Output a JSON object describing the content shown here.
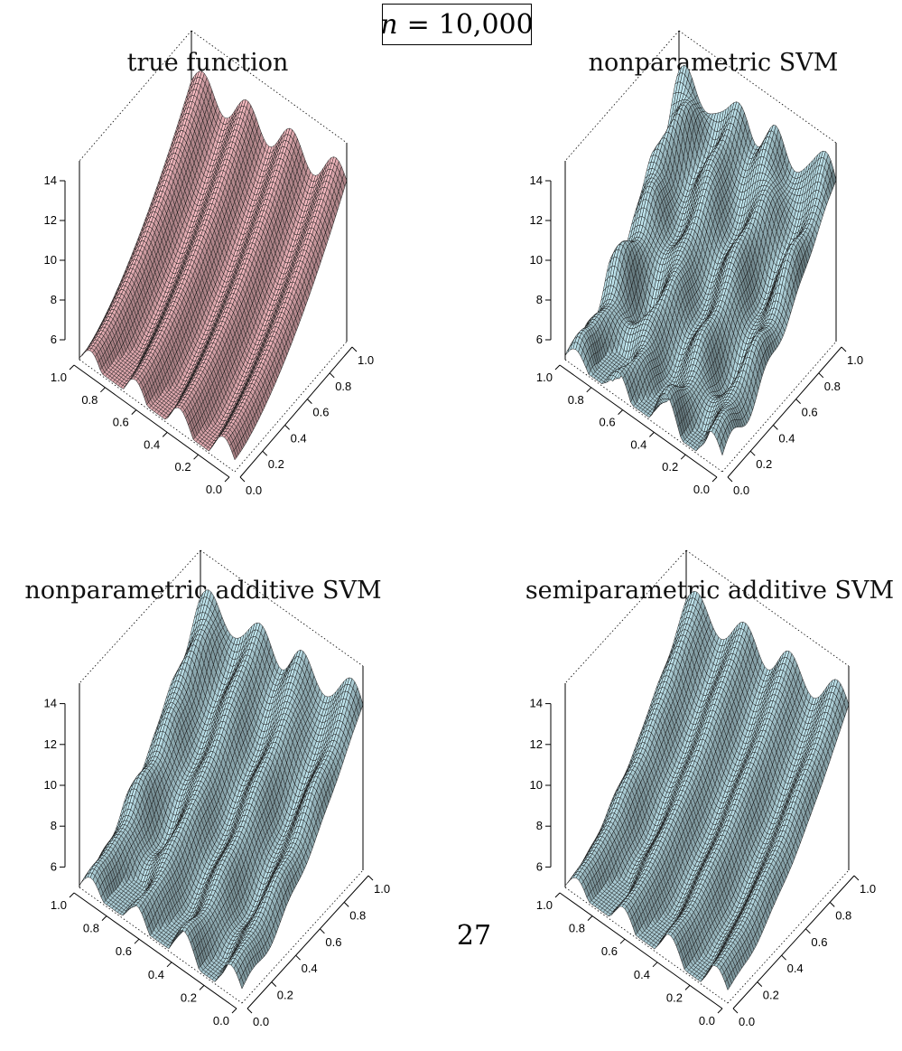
{
  "header": {
    "variable": "n",
    "equals": "=",
    "value": "10,000"
  },
  "page_number": "27",
  "colors": {
    "true_surface": "#f0b6bc",
    "svm_surface": "#b7dbe4",
    "mesh": "#1a1a1a"
  },
  "chart_data": [
    {
      "type": "surface",
      "title": "true function",
      "surface_color": "#f0b6bc",
      "zlim": [
        5,
        15
      ],
      "z_ticks": [
        "6",
        "8",
        "10",
        "12",
        "14"
      ],
      "x_ticks": [
        "0.0",
        "0.2",
        "0.4",
        "0.6",
        "0.8",
        "1.0"
      ],
      "y_ticks": [
        "0.0",
        "0.2",
        "0.4",
        "0.6",
        "0.8",
        "1.0"
      ],
      "noise": 0
    },
    {
      "type": "surface",
      "title": "nonparametric SVM",
      "surface_color": "#b7dbe4",
      "zlim": [
        5,
        15
      ],
      "z_ticks": [
        "6",
        "8",
        "10",
        "12",
        "14"
      ],
      "x_ticks": [
        "0.0",
        "0.2",
        "0.4",
        "0.6",
        "0.8",
        "1.0"
      ],
      "y_ticks": [
        "0.0",
        "0.2",
        "0.4",
        "0.6",
        "0.8",
        "1.0"
      ],
      "noise": 0.55
    },
    {
      "type": "surface",
      "title": "nonparametric additive SVM",
      "surface_color": "#b7dbe4",
      "zlim": [
        5,
        15
      ],
      "z_ticks": [
        "6",
        "8",
        "10",
        "12",
        "14"
      ],
      "x_ticks": [
        "0.0",
        "0.2",
        "0.4",
        "0.6",
        "0.8",
        "1.0"
      ],
      "y_ticks": [
        "0.0",
        "0.2",
        "0.4",
        "0.6",
        "0.8",
        "1.0"
      ],
      "noise": 0.25
    },
    {
      "type": "surface",
      "title": "semiparametric additive SVM",
      "surface_color": "#b7dbe4",
      "zlim": [
        5,
        15
      ],
      "z_ticks": [
        "6",
        "8",
        "10",
        "12",
        "14"
      ],
      "x_ticks": [
        "0.0",
        "0.2",
        "0.4",
        "0.6",
        "0.8",
        "1.0"
      ],
      "y_ticks": [
        "0.0",
        "0.2",
        "0.4",
        "0.6",
        "0.8",
        "1.0"
      ],
      "noise": 0.1
    }
  ]
}
